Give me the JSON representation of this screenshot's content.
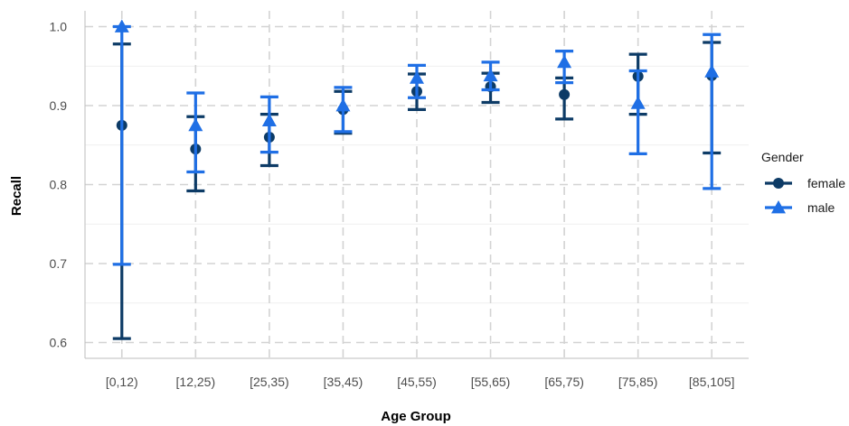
{
  "chart_data": {
    "type": "scatter",
    "xlabel": "Age Group",
    "ylabel": "Recall",
    "categories": [
      "[0,12)",
      "[12,25)",
      "[25,35)",
      "[35,45)",
      "[45,55)",
      "[55,65)",
      "[65,75)",
      "[75,85)",
      "[85,105]"
    ],
    "ylim": [
      0.58,
      1.02
    ],
    "yticks": [
      0.6,
      0.7,
      0.8,
      0.9,
      1.0
    ],
    "ytick_labels": [
      "0.6",
      "0.7",
      "0.8",
      "0.9",
      "1.0"
    ],
    "grid": true,
    "legend": {
      "title": "Gender",
      "position": "right"
    },
    "series": [
      {
        "name": "female",
        "color": "#0d3b66",
        "marker": "circle",
        "values": [
          0.875,
          0.845,
          0.86,
          0.895,
          0.918,
          0.924,
          0.914,
          0.937,
          0.938
        ],
        "lower": [
          0.605,
          0.792,
          0.824,
          0.865,
          0.895,
          0.904,
          0.883,
          0.889,
          0.84
        ],
        "upper": [
          0.978,
          0.886,
          0.889,
          0.918,
          0.94,
          0.941,
          0.935,
          0.965,
          0.98
        ]
      },
      {
        "name": "male",
        "color": "#1f6fe5",
        "marker": "triangle",
        "values": [
          1.0,
          0.875,
          0.881,
          0.9,
          0.935,
          0.938,
          0.955,
          0.903,
          0.943
        ],
        "lower": [
          0.699,
          0.816,
          0.841,
          0.867,
          0.91,
          0.92,
          0.929,
          0.839,
          0.795
        ],
        "upper": [
          1.0,
          0.916,
          0.911,
          0.923,
          0.951,
          0.955,
          0.969,
          0.944,
          0.99
        ]
      }
    ]
  }
}
